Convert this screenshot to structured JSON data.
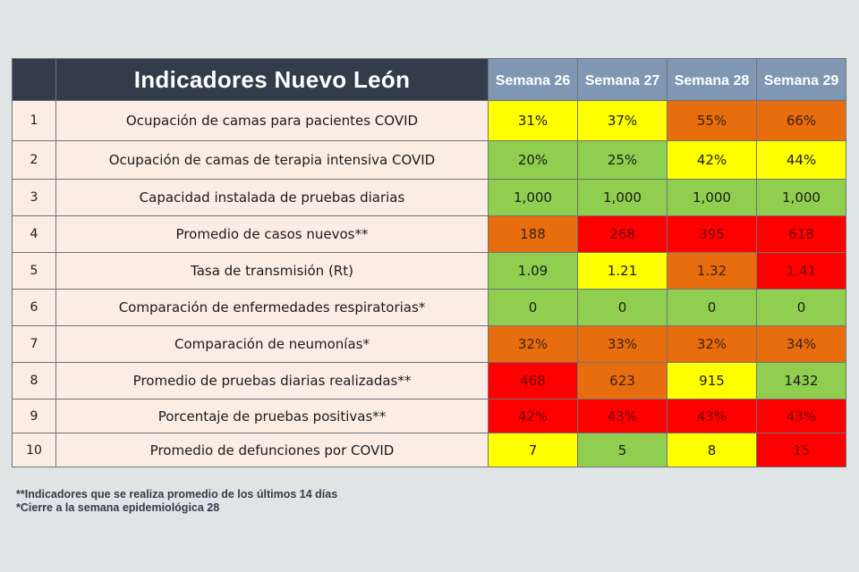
{
  "table": {
    "title": "Indicadores Nuevo León",
    "weeks": [
      "Semana 26",
      "Semana 27",
      "Semana 28",
      "Semana 29"
    ],
    "colors": {
      "green": "#8fce4f",
      "yellow": "#ffff00",
      "orange": "#e86d0f",
      "red": "#fe0000",
      "header_dark": "#333c4b",
      "header_week": "#8097b4"
    },
    "rows": [
      {
        "num": "1",
        "name": "Ocupación de camas para pacientes COVID",
        "values": [
          "31%",
          "37%",
          "55%",
          "66%"
        ],
        "status": [
          "yellow",
          "yellow",
          "orange",
          "orange"
        ]
      },
      {
        "num": "2",
        "name": "Ocupación de camas de terapia intensiva COVID",
        "values": [
          "20%",
          "25%",
          "42%",
          "44%"
        ],
        "status": [
          "green",
          "green",
          "yellow",
          "yellow"
        ]
      },
      {
        "num": "3",
        "name": "Capacidad instalada de pruebas diarias",
        "values": [
          "1,000",
          "1,000",
          "1,000",
          "1,000"
        ],
        "status": [
          "green",
          "green",
          "green",
          "green"
        ]
      },
      {
        "num": "4",
        "name": "Promedio de casos nuevos**",
        "values": [
          "188",
          "268",
          "395",
          "618"
        ],
        "status": [
          "orange",
          "red",
          "red",
          "red"
        ]
      },
      {
        "num": "5",
        "name": "Tasa de transmisión (Rt)",
        "values": [
          "1.09",
          "1.21",
          "1.32",
          "1.41"
        ],
        "status": [
          "green",
          "yellow",
          "orange",
          "red"
        ]
      },
      {
        "num": "6",
        "name": "Comparación de enfermedades respiratorias*",
        "values": [
          "0",
          "0",
          "0",
          "0"
        ],
        "status": [
          "green",
          "green",
          "green",
          "green"
        ]
      },
      {
        "num": "7",
        "name": "Comparación de neumonías*",
        "values": [
          "32%",
          "33%",
          "32%",
          "34%"
        ],
        "status": [
          "orange",
          "orange",
          "orange",
          "orange"
        ]
      },
      {
        "num": "8",
        "name": "Promedio de pruebas diarias realizadas**",
        "values": [
          "468",
          "623",
          "915",
          "1432"
        ],
        "status": [
          "red",
          "orange",
          "yellow",
          "green"
        ]
      },
      {
        "num": "9",
        "name": "Porcentaje de pruebas positivas**",
        "values": [
          "42%",
          "43%",
          "43%",
          "43%"
        ],
        "status": [
          "red",
          "red",
          "red",
          "red"
        ]
      },
      {
        "num": "10",
        "name": "Promedio de defunciones por COVID",
        "values": [
          "7",
          "5",
          "8",
          "15"
        ],
        "status": [
          "yellow",
          "green",
          "yellow",
          "red"
        ]
      }
    ]
  },
  "notes": {
    "line1": "**Indicadores que se realiza promedio de los últimos 14 días",
    "line2": "*Cierre a la semana epidemiológica 28"
  }
}
